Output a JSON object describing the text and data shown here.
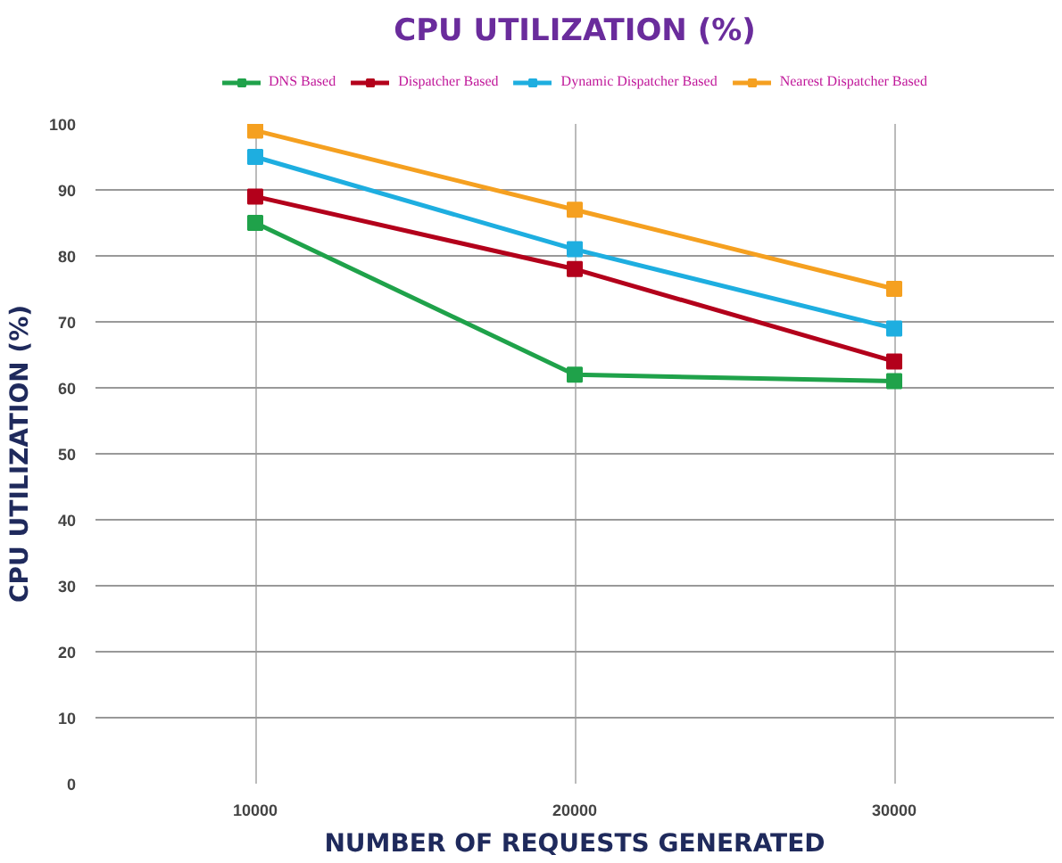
{
  "chart_data": {
    "type": "line",
    "title": "CPU UTILIZATION (%)",
    "xlabel": "NUMBER OF REQUESTS GENERATED",
    "ylabel": "CPU UTILIZATION (%)",
    "categories": [
      "10000",
      "20000",
      "30000"
    ],
    "series": [
      {
        "name": "DNS Based",
        "color": "#1fa24a",
        "values": [
          85,
          62,
          61
        ]
      },
      {
        "name": "Dispatcher Based",
        "color": "#b3001b",
        "values": [
          89,
          78,
          64
        ]
      },
      {
        "name": "Dynamic Dispatcher Based",
        "color": "#1eaee0",
        "values": [
          95,
          81,
          69
        ]
      },
      {
        "name": "Nearest Dispatcher Based",
        "color": "#f5a020",
        "values": [
          99,
          87,
          75
        ]
      }
    ],
    "ylim": [
      0,
      100
    ],
    "yticks": [
      0,
      10,
      20,
      30,
      40,
      50,
      60,
      70,
      80,
      90,
      100
    ],
    "grid": true,
    "legend": "top",
    "marker": "square",
    "line_style": "solid"
  }
}
